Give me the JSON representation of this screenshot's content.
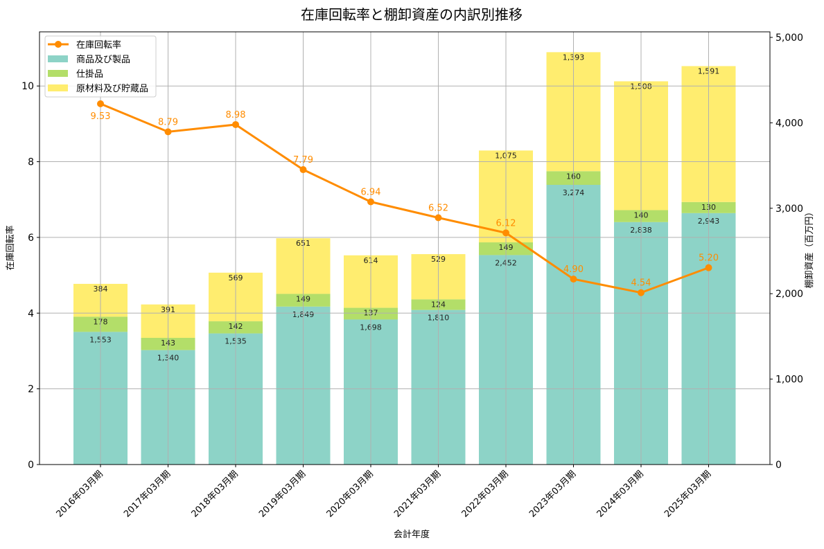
{
  "chart_data": {
    "type": "bar",
    "title": "在庫回転率と棚卸資産の内訳別推移",
    "xlabel": "会計年度",
    "ylabel": "在庫回転率",
    "y2label": "棚卸資産（百万円）",
    "ylim": [
      0,
      11.43
    ],
    "y2lim": [
      0,
      5065
    ],
    "yticks": [
      0,
      2,
      4,
      6,
      8,
      10
    ],
    "y2ticks": [
      0,
      1000,
      2000,
      3000,
      4000,
      5000
    ],
    "y2ticklabels": [
      "0",
      "1,000",
      "2,000",
      "3,000",
      "4,000",
      "5,000"
    ],
    "grid": true,
    "legend_position": "top-left",
    "categories": [
      "2016年03月期",
      "2017年03月期",
      "2018年03月期",
      "2019年03月期",
      "2020年03月期",
      "2021年03月期",
      "2022年03月期",
      "2023年03月期",
      "2024年03月期",
      "2025年03月期"
    ],
    "series": [
      {
        "name": "商品及び製品",
        "kind": "stacked-bar",
        "axis": "right",
        "color": "#8dd3c7",
        "values": [
          1553,
          1340,
          1535,
          1849,
          1698,
          1810,
          2452,
          3274,
          2838,
          2943
        ]
      },
      {
        "name": "仕掛品",
        "kind": "stacked-bar",
        "axis": "right",
        "color": "#b3de69",
        "values": [
          178,
          143,
          142,
          149,
          137,
          124,
          149,
          160,
          140,
          130
        ]
      },
      {
        "name": "原材料及び貯蔵品",
        "kind": "stacked-bar",
        "axis": "right",
        "color": "#ffed6f",
        "values": [
          384,
          391,
          569,
          651,
          614,
          529,
          1075,
          1393,
          1508,
          1591
        ]
      },
      {
        "name": "在庫回転率",
        "kind": "line",
        "axis": "left",
        "color": "#ff8c00",
        "values": [
          9.53,
          8.79,
          8.98,
          7.79,
          6.94,
          6.52,
          6.12,
          4.9,
          4.54,
          5.2
        ]
      }
    ]
  }
}
